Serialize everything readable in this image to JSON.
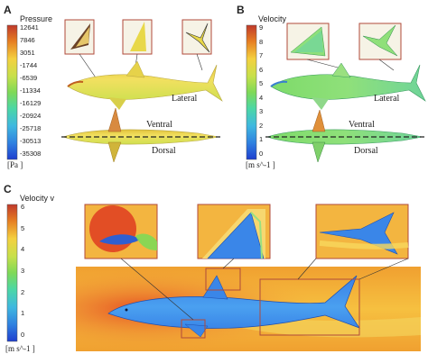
{
  "panels": {
    "A": {
      "letter": "A",
      "colorbar": {
        "title": "Pressure",
        "unit": "[Pa ]",
        "ticks": [
          "12641",
          "7846",
          "3051",
          "-1744",
          "-6539",
          "-11334",
          "-16129",
          "-20924",
          "-25718",
          "-30513",
          "-35308"
        ],
        "colors": [
          "#c0392b",
          "#e67e22",
          "#f4d03f",
          "#c7e04a",
          "#7ed957",
          "#4cd7a5",
          "#3fb8e0",
          "#2f7fe0",
          "#1f3fcf"
        ]
      },
      "labels": {
        "lateral": "Lateral",
        "ventral": "Ventral",
        "dorsal": "Dorsal"
      }
    },
    "B": {
      "letter": "B",
      "colorbar": {
        "title": "Velocity",
        "unit": "[m s^-1 ]",
        "ticks": [
          "9",
          "8",
          "7",
          "6",
          "5",
          "4",
          "3",
          "2",
          "1",
          "0"
        ],
        "colors": [
          "#c0392b",
          "#e67e22",
          "#f4d03f",
          "#c7e04a",
          "#7ed957",
          "#4cd7a5",
          "#3fb8e0",
          "#2f7fe0",
          "#1f3fcf"
        ]
      },
      "labels": {
        "lateral": "Lateral",
        "ventral": "Ventral",
        "dorsal": "Dorsal"
      }
    },
    "C": {
      "letter": "C",
      "colorbar": {
        "title": "Velocity v",
        "unit": "[m s^-1 ]",
        "ticks": [
          "6",
          "5",
          "4",
          "3",
          "2",
          "1",
          "0"
        ],
        "colors": [
          "#c0392b",
          "#e67e22",
          "#f4d03f",
          "#c7e04a",
          "#7ed957",
          "#4cd7a5",
          "#3fb8e0",
          "#2f7fe0",
          "#1f3fcf"
        ]
      }
    }
  }
}
